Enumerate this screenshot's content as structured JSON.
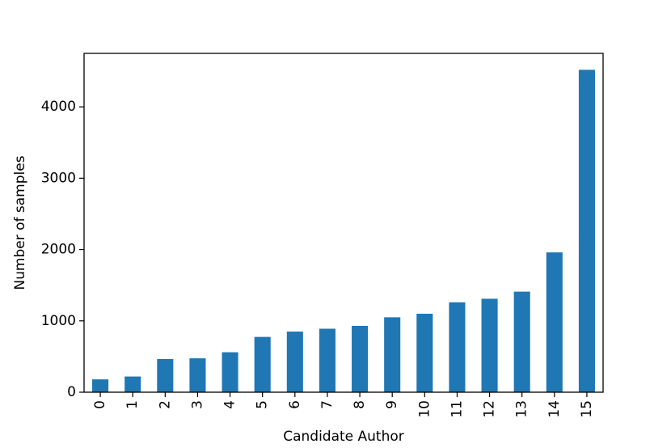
{
  "chart_data": {
    "type": "bar",
    "title": "",
    "xlabel": "Candidate Author",
    "ylabel": "Number of samples",
    "categories": [
      "0",
      "1",
      "2",
      "3",
      "4",
      "5",
      "6",
      "7",
      "8",
      "9",
      "10",
      "11",
      "12",
      "13",
      "14",
      "15"
    ],
    "values": [
      180,
      220,
      465,
      475,
      560,
      775,
      850,
      890,
      930,
      1050,
      1100,
      1260,
      1310,
      1410,
      1960,
      4520
    ],
    "ylim": [
      0,
      4750
    ],
    "yticks": [
      "0",
      "1000",
      "2000",
      "3000",
      "4000"
    ],
    "grid": false,
    "legend": "none",
    "bar_color": "#1f77b4"
  }
}
